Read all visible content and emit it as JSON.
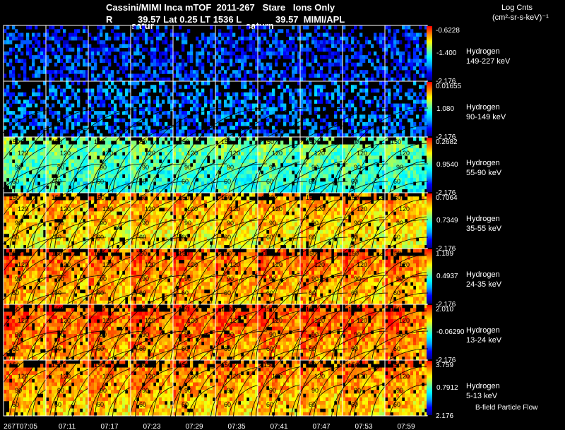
{
  "header": {
    "title": "Cassini/MIMI Inca mTOF  2011-267   Stare   Ions Only",
    "subtitle_left": "R",
    "subtitle_mid": "39.57 Lat 0.25 LT 1536 L",
    "subtitle_right": "39.57  MIMI/APL",
    "saturn_label_1": "satur",
    "saturn_label_2": "saturn",
    "units_line1": "Log Cnts",
    "units_line2": "(cm²-sr-s-keV)⁻¹"
  },
  "footer": {
    "bfield_label": "B-field Particle Flow"
  },
  "chart_data": {
    "type": "heatmap",
    "title": "Cassini/MIMI Inca mTOF 2011-267 Stare Ions Only",
    "colorscale": [
      "#000080",
      "#0000ff",
      "#00a0ff",
      "#00ffff",
      "#80ff80",
      "#ffff00",
      "#ff8000",
      "#ff0000"
    ],
    "time_labels": [
      "267T07:05",
      "07:11",
      "07:17",
      "07:23",
      "07:29",
      "07:35",
      "07:41",
      "07:47",
      "07:53",
      "07:59"
    ],
    "contour_labels": [
      "60",
      "90",
      "120",
      "150"
    ],
    "rows": [
      {
        "species": "Hydrogen",
        "energy": "149-227 keV",
        "cmax": "-0.6228",
        "cmid": "-1.400",
        "cmin": "-2.176",
        "level": 0.18,
        "contours": false
      },
      {
        "species": "Hydrogen",
        "energy": "90-149 keV",
        "cmax": "0.01655",
        "cmid": "1.080",
        "cmin": "-2.176",
        "level": 0.25,
        "contours": false
      },
      {
        "species": "Hydrogen",
        "energy": "55-90 keV",
        "cmax": "0.2682",
        "cmid": "0.9540",
        "cmin": "-2.176",
        "level": 0.5,
        "contours": true
      },
      {
        "species": "Hydrogen",
        "energy": "35-55 keV",
        "cmax": "0.7064",
        "cmid": "0.7349",
        "cmin": "-2.176",
        "level": 0.75,
        "contours": true
      },
      {
        "species": "Hydrogen",
        "energy": "24-35 keV",
        "cmax": "1.189",
        "cmid": "0.4937",
        "cmin": "-2.176",
        "level": 0.82,
        "contours": true
      },
      {
        "species": "Hydrogen",
        "energy": "13-24 keV",
        "cmax": "2.010",
        "cmid": "-0.06290",
        "cmin": "-2.176",
        "level": 0.85,
        "contours": true
      },
      {
        "species": "Hydrogen",
        "energy": "5-13 keV",
        "cmax": "3.759",
        "cmid": "0.7912",
        "cmin": "2.176",
        "level": 0.8,
        "contours": true
      }
    ]
  }
}
